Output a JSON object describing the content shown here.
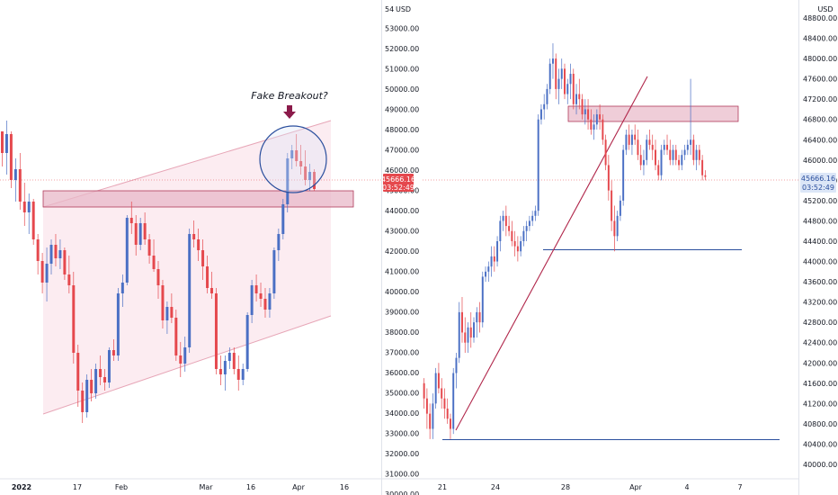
{
  "colors": {
    "up": "#4a6fc4",
    "down": "#e5484d",
    "zone_fill": "#e8b8c8",
    "zone_stroke": "#b03a5b",
    "channel_fill": "#fbe9ef",
    "channel_line": "#e7a6b7",
    "support_line": "#2b4f9e",
    "trend_line": "#b0264a",
    "circle": "#2b4f9e",
    "arrow": "#8b1a4a",
    "price_badge": "#e5484d"
  },
  "chart_data": [
    {
      "type": "candlestick",
      "title": "",
      "xlabel": "",
      "ylabel": "",
      "x_tick_labels": [
        "2022",
        "17",
        "Feb",
        "Mar",
        "16",
        "Apr",
        "16"
      ],
      "annotations": {
        "fake_breakout_label": "Fake Breakout?",
        "resistance_zone": [
          45000,
          45600
        ],
        "ascending_channel": true,
        "circle_around_breakout": true
      },
      "candles_ohlc": [
        [
          47800,
          47800,
          46500,
          47000
        ],
        [
          47000,
          48200,
          46200,
          47700
        ],
        [
          47700,
          47800,
          45700,
          46000
        ],
        [
          46000,
          46800,
          45200,
          46400
        ],
        [
          46400,
          47000,
          44900,
          45200
        ],
        [
          45200,
          45900,
          44300,
          44800
        ],
        [
          44800,
          45500,
          44000,
          45200
        ],
        [
          45200,
          45300,
          43600,
          43800
        ],
        [
          43800,
          44000,
          42500,
          43000
        ],
        [
          43000,
          43300,
          41800,
          42200
        ],
        [
          42200,
          43500,
          41500,
          42900
        ],
        [
          42900,
          43800,
          42500,
          43600
        ],
        [
          43600,
          44000,
          42800,
          43100
        ],
        [
          43100,
          43800,
          42700,
          43400
        ],
        [
          43400,
          43500,
          42300,
          42500
        ],
        [
          42500,
          43200,
          41800,
          42100
        ],
        [
          42100,
          42600,
          39200,
          39600
        ],
        [
          39600,
          39900,
          37600,
          38200
        ],
        [
          38200,
          38500,
          37000,
          37400
        ],
        [
          37400,
          38800,
          37200,
          38600
        ],
        [
          38600,
          39000,
          37800,
          38100
        ],
        [
          38100,
          39200,
          37900,
          39000
        ],
        [
          39000,
          39500,
          38400,
          38700
        ],
        [
          38700,
          39000,
          38200,
          38500
        ],
        [
          38500,
          39800,
          38300,
          39700
        ],
        [
          39700,
          40100,
          39300,
          39500
        ],
        [
          39500,
          42000,
          39300,
          41800
        ],
        [
          41800,
          42500,
          41300,
          42200
        ],
        [
          42200,
          44700,
          42100,
          44600
        ],
        [
          44600,
          45200,
          44000,
          44400
        ],
        [
          44400,
          44700,
          43200,
          43600
        ],
        [
          43600,
          44600,
          43400,
          44400
        ],
        [
          44400,
          44800,
          43600,
          43800
        ],
        [
          43800,
          44000,
          42900,
          43200
        ],
        [
          43200,
          43800,
          42600,
          42700
        ],
        [
          42700,
          43000,
          41600,
          42100
        ],
        [
          42100,
          42300,
          40500,
          40800
        ],
        [
          40800,
          41500,
          40300,
          41300
        ],
        [
          41300,
          41800,
          40700,
          40900
        ],
        [
          40900,
          41200,
          39300,
          39500
        ],
        [
          39500,
          40000,
          38700,
          39200
        ],
        [
          39200,
          40200,
          38900,
          39800
        ],
        [
          39800,
          44200,
          39600,
          44000
        ],
        [
          44000,
          44500,
          43500,
          43800
        ],
        [
          43800,
          44200,
          43000,
          43400
        ],
        [
          43400,
          43800,
          42300,
          42800
        ],
        [
          42800,
          43200,
          41800,
          42000
        ],
        [
          42000,
          42600,
          41600,
          41800
        ],
        [
          41800,
          42000,
          38800,
          39000
        ],
        [
          39000,
          39500,
          38400,
          38800
        ],
        [
          38800,
          39500,
          38200,
          39300
        ],
        [
          39300,
          39800,
          39000,
          39600
        ],
        [
          39600,
          39800,
          38800,
          39000
        ],
        [
          39000,
          39500,
          38200,
          38600
        ],
        [
          38600,
          39200,
          38400,
          39000
        ],
        [
          39000,
          41100,
          38900,
          41000
        ],
        [
          41000,
          42300,
          40700,
          42100
        ],
        [
          42100,
          42500,
          41500,
          41800
        ],
        [
          41800,
          42200,
          41300,
          41600
        ],
        [
          41600,
          42000,
          40900,
          41200
        ],
        [
          41200,
          42000,
          40900,
          41800
        ],
        [
          41800,
          43500,
          41600,
          43400
        ],
        [
          43400,
          44200,
          43000,
          44000
        ],
        [
          44000,
          45300,
          43800,
          45100
        ],
        [
          45100,
          47000,
          44800,
          46800
        ],
        [
          46800,
          47300,
          46400,
          47100
        ],
        [
          47100,
          47700,
          46500,
          46700
        ],
        [
          46700,
          47300,
          46200,
          46500
        ],
        [
          46500,
          47100,
          45800,
          46000
        ],
        [
          46000,
          46600,
          45600,
          46300
        ],
        [
          46300,
          46400,
          45600,
          45666
        ]
      ],
      "y_tick_labels": [
        "48000.00",
        "47000.00",
        "46000.00",
        "45000.00",
        "44000.00",
        "43000.00",
        "42000.00",
        "41000.00",
        "40000.00",
        "39000.00",
        "38000.00",
        "37000.00",
        "36000.00",
        "35000.00",
        "34000.00",
        "33000.00",
        "32000.00",
        "31000.00",
        "30000.00"
      ]
    },
    {
      "type": "candlestick",
      "title": "",
      "xlabel": "",
      "ylabel": "",
      "currency_label": "USD",
      "last_price": "45666.16",
      "countdown": "03:52:49",
      "ylim": [
        39900,
        49100
      ],
      "y_tick_labels": [
        "48800.00",
        "48400.00",
        "48000.00",
        "47600.00",
        "47200.00",
        "46800.00",
        "46400.00",
        "46000.00",
        "45600.00",
        "45200.00",
        "44800.00",
        "44400.00",
        "44000.00",
        "43600.00",
        "43200.00",
        "42800.00",
        "42400.00",
        "42000.00",
        "41600.00",
        "41200.00",
        "40800.00",
        "40400.00",
        "40000.00"
      ],
      "x_tick_labels": [
        "21",
        "24",
        "28",
        "Apr",
        "4",
        "7"
      ],
      "annotations": {
        "resistance_zone": [
          46840,
          47080
        ],
        "support_line_upper": 44180,
        "support_line_lower": 40450,
        "trendline_from": 40600,
        "trendline_to": 47500
      },
      "candles_ohlc": [
        [
          41600,
          41700,
          41100,
          41300
        ],
        [
          41300,
          41500,
          40700,
          41000
        ],
        [
          41000,
          41200,
          40500,
          40700
        ],
        [
          40700,
          41400,
          40500,
          41200
        ],
        [
          41200,
          41900,
          41100,
          41800
        ],
        [
          41800,
          42000,
          41400,
          41500
        ],
        [
          41500,
          41700,
          41100,
          41300
        ],
        [
          41300,
          41500,
          40900,
          41100
        ],
        [
          41100,
          41300,
          40800,
          40900
        ],
        [
          40900,
          41000,
          40500,
          40700
        ],
        [
          40700,
          41900,
          40600,
          41800
        ],
        [
          41800,
          42200,
          41500,
          42100
        ],
        [
          42100,
          43200,
          42000,
          43000
        ],
        [
          43000,
          43300,
          42400,
          42600
        ],
        [
          42600,
          42900,
          42200,
          42400
        ],
        [
          42400,
          42800,
          42200,
          42700
        ],
        [
          42700,
          43000,
          42300,
          42500
        ],
        [
          42500,
          42900,
          42400,
          42800
        ],
        [
          42800,
          43100,
          42500,
          43000
        ],
        [
          43000,
          43200,
          42600,
          42800
        ],
        [
          42800,
          43800,
          42700,
          43700
        ],
        [
          43700,
          43900,
          43600,
          43800
        ],
        [
          43800,
          44000,
          43600,
          43900
        ],
        [
          43900,
          44300,
          43700,
          44100
        ],
        [
          44100,
          44300,
          43800,
          44000
        ],
        [
          44000,
          44500,
          43900,
          44400
        ],
        [
          44400,
          44900,
          44200,
          44800
        ],
        [
          44800,
          45000,
          44600,
          44900
        ],
        [
          44900,
          45100,
          44500,
          44700
        ],
        [
          44700,
          44900,
          44500,
          44600
        ],
        [
          44600,
          44800,
          44300,
          44400
        ],
        [
          44400,
          44600,
          44100,
          44300
        ],
        [
          44300,
          44500,
          44000,
          44200
        ],
        [
          44200,
          44500,
          44100,
          44400
        ],
        [
          44400,
          44700,
          44300,
          44600
        ],
        [
          44600,
          44800,
          44400,
          44700
        ],
        [
          44700,
          44900,
          44600,
          44800
        ],
        [
          44800,
          45000,
          44700,
          44900
        ],
        [
          44900,
          45100,
          44800,
          45000
        ],
        [
          45000,
          46900,
          44900,
          46800
        ],
        [
          46800,
          47100,
          46700,
          47000
        ],
        [
          47000,
          47300,
          46800,
          47100
        ],
        [
          47100,
          47500,
          47000,
          47400
        ],
        [
          47400,
          48000,
          47300,
          47900
        ],
        [
          47900,
          48300,
          47600,
          48000
        ],
        [
          48000,
          48100,
          47200,
          47400
        ],
        [
          47400,
          47800,
          47100,
          47600
        ],
        [
          47600,
          48000,
          47400,
          47800
        ],
        [
          47800,
          47900,
          47200,
          47300
        ],
        [
          47300,
          47600,
          47100,
          47500
        ],
        [
          47500,
          47900,
          47200,
          47700
        ],
        [
          47700,
          47800,
          47000,
          47100
        ],
        [
          47100,
          47500,
          46900,
          47300
        ],
        [
          47300,
          47600,
          47000,
          47200
        ],
        [
          47200,
          47300,
          46800,
          46900
        ],
        [
          46900,
          47200,
          46700,
          47000
        ],
        [
          47000,
          47200,
          46600,
          46800
        ],
        [
          46800,
          47000,
          46500,
          46600
        ],
        [
          46600,
          46900,
          46400,
          46700
        ],
        [
          46700,
          47000,
          46600,
          46900
        ],
        [
          46900,
          47100,
          46600,
          46800
        ],
        [
          46800,
          46900,
          46300,
          46400
        ],
        [
          46400,
          46500,
          45800,
          45900
        ],
        [
          45900,
          46100,
          45200,
          45400
        ],
        [
          45400,
          45600,
          44600,
          44800
        ],
        [
          44800,
          45100,
          44200,
          44500
        ],
        [
          44500,
          45000,
          44400,
          44900
        ],
        [
          44900,
          45300,
          44800,
          45200
        ],
        [
          45200,
          46300,
          45100,
          46200
        ],
        [
          46200,
          46600,
          46100,
          46500
        ],
        [
          46500,
          46700,
          46200,
          46300
        ],
        [
          46300,
          46600,
          46100,
          46500
        ],
        [
          46500,
          46700,
          46300,
          46400
        ],
        [
          46400,
          46600,
          46000,
          46100
        ],
        [
          46100,
          46300,
          45800,
          45900
        ],
        [
          45900,
          46200,
          45700,
          46000
        ],
        [
          46000,
          46500,
          45900,
          46400
        ],
        [
          46400,
          46600,
          46200,
          46300
        ],
        [
          46300,
          46500,
          46000,
          46200
        ],
        [
          46200,
          46400,
          45800,
          45900
        ],
        [
          45900,
          46000,
          45600,
          45700
        ],
        [
          45700,
          46300,
          45600,
          46200
        ],
        [
          46200,
          46400,
          46100,
          46300
        ],
        [
          46300,
          46500,
          46100,
          46200
        ],
        [
          46200,
          46400,
          45900,
          46000
        ],
        [
          46000,
          46300,
          45900,
          46200
        ],
        [
          46200,
          46300,
          45900,
          46000
        ],
        [
          46000,
          46100,
          45800,
          45900
        ],
        [
          45900,
          46200,
          45800,
          46100
        ],
        [
          46100,
          46300,
          46000,
          46200
        ],
        [
          46200,
          46400,
          46100,
          46300
        ],
        [
          46300,
          47600,
          46100,
          46400
        ],
        [
          46400,
          46500,
          45900,
          46000
        ],
        [
          46000,
          46300,
          45800,
          46200
        ],
        [
          46200,
          46300,
          45900,
          46000
        ],
        [
          46000,
          46100,
          45600,
          45700
        ],
        [
          45700,
          45800,
          45600,
          45666
        ]
      ]
    }
  ]
}
